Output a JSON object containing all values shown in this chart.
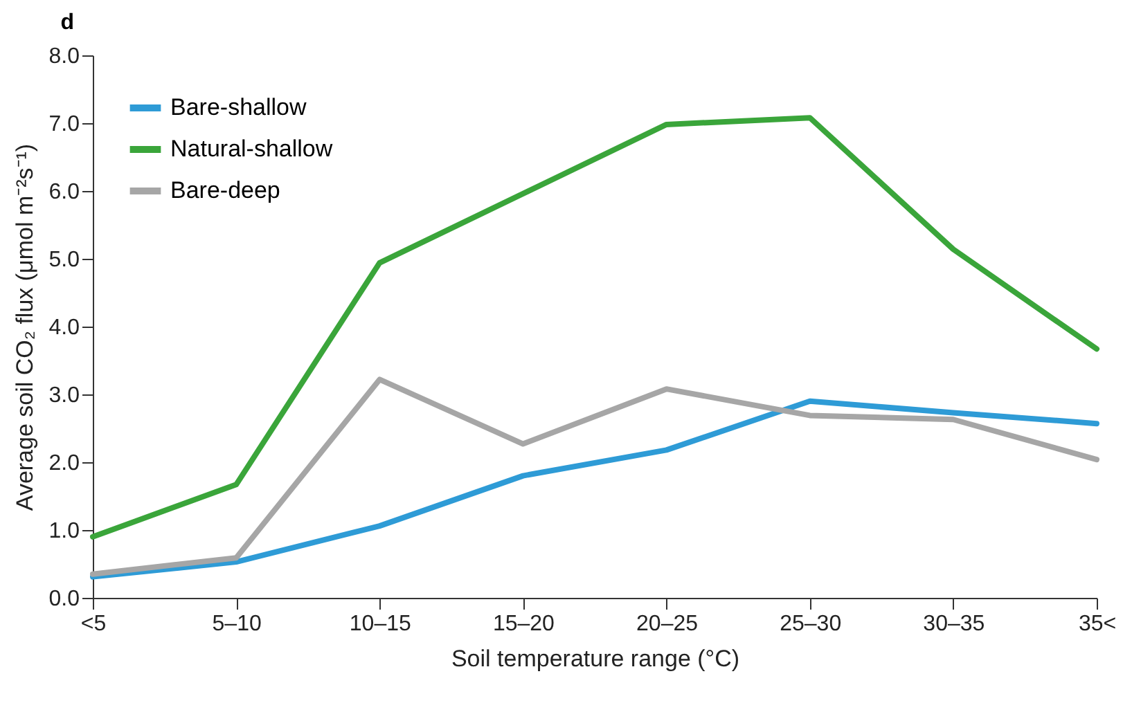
{
  "chart_data": {
    "type": "line",
    "title": "d",
    "xlabel": "Soil temperature range (°C)",
    "ylabel": "Average soil CO₂ flux (μmol m⁻²s⁻¹)",
    "categories": [
      "<5",
      "5–10",
      "10–15",
      "15–20",
      "20–25",
      "25–30",
      "30–35",
      "35<"
    ],
    "series": [
      {
        "name": "Bare-shallow",
        "color": "#2e9bd6",
        "values": [
          0.31,
          0.53,
          1.06,
          1.8,
          2.18,
          2.9,
          2.73,
          2.57
        ]
      },
      {
        "name": "Natural-shallow",
        "color": "#3aa53a",
        "values": [
          0.9,
          1.67,
          4.94,
          5.96,
          6.98,
          7.08,
          5.14,
          3.67
        ]
      },
      {
        "name": "Bare-deep",
        "color": "#a6a6a6",
        "values": [
          0.35,
          0.59,
          3.22,
          2.27,
          3.08,
          2.69,
          2.63,
          2.04
        ]
      }
    ],
    "ylim": [
      0,
      8
    ],
    "yticks": [
      {
        "value": 0,
        "label": "0.0"
      },
      {
        "value": 1,
        "label": "1.0"
      },
      {
        "value": 2,
        "label": "2.0"
      },
      {
        "value": 3,
        "label": "3.0"
      },
      {
        "value": 4,
        "label": "4.0"
      },
      {
        "value": 5,
        "label": "5.0"
      },
      {
        "value": 6,
        "label": "6.0"
      },
      {
        "value": 7,
        "label": "7.0"
      },
      {
        "value": 8,
        "label": "8.0"
      }
    ],
    "grid": false,
    "legend": "top left",
    "marker": "none",
    "line_style": "solid"
  }
}
